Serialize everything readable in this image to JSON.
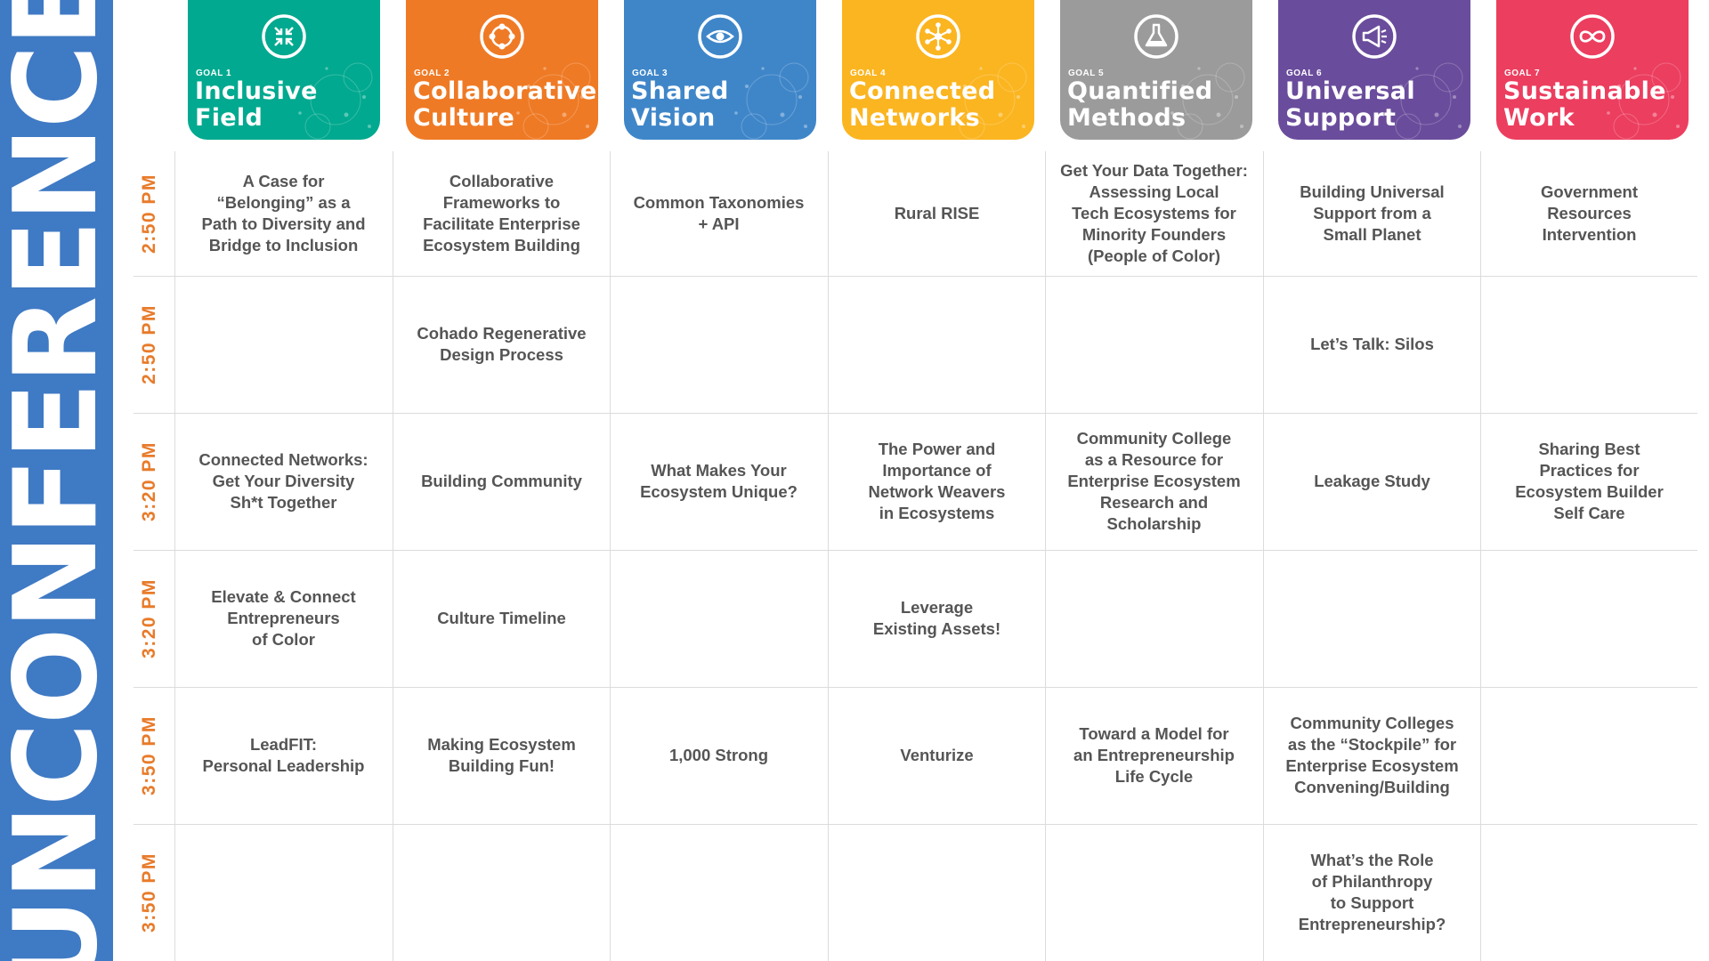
{
  "sidebar": {
    "title": "UNCONFERENCE"
  },
  "goals": [
    {
      "num": "GOAL 1",
      "title": "Inclusive\nField",
      "color": "#00a98f",
      "icon": "arrows-inward-icon"
    },
    {
      "num": "GOAL 2",
      "title": "Collaborative\nCulture",
      "color": "#ef7a25",
      "icon": "circle-nodes-icon"
    },
    {
      "num": "GOAL 3",
      "title": "Shared\nVision",
      "color": "#3f86c9",
      "icon": "eye-icon"
    },
    {
      "num": "GOAL 4",
      "title": "Connected\nNetworks",
      "color": "#fbb520",
      "icon": "network-icon"
    },
    {
      "num": "GOAL 5",
      "title": "Quantified\nMethods",
      "color": "#9b9b9b",
      "icon": "flask-icon"
    },
    {
      "num": "GOAL 6",
      "title": "Universal\nSupport",
      "color": "#6a4c9c",
      "icon": "megaphone-icon"
    },
    {
      "num": "GOAL 7",
      "title": "Sustainable\nWork",
      "color": "#ec3e5f",
      "icon": "infinity-icon"
    }
  ],
  "rows": [
    {
      "time": "2:50 PM",
      "sessions": [
        "A Case for\n“Belonging” as a\nPath to Diversity and\nBridge to Inclusion",
        "Collaborative\nFrameworks to\nFacilitate Enterprise\nEcosystem Building",
        "Common Taxonomies\n+ API",
        "Rural RISE",
        "Get Your Data Together:\nAssessing Local\nTech Ecosystems for\nMinority Founders\n(People of Color)",
        "Building Universal\nSupport from a\nSmall Planet",
        "Government\nResources\nIntervention"
      ]
    },
    {
      "time": "2:50 PM",
      "sessions": [
        "",
        "Cohado Regenerative\nDesign Process",
        "",
        "",
        "",
        "Let’s Talk: Silos",
        ""
      ]
    },
    {
      "time": "3:20 PM",
      "sessions": [
        "Connected Networks:\nGet Your Diversity\nSh*t Together",
        "Building Community",
        "What Makes Your\nEcosystem Unique?",
        "The Power and\nImportance of\nNetwork Weavers\nin Ecosystems",
        "Community College\nas a Resource for\nEnterprise Ecosystem\nResearch and\nScholarship",
        "Leakage Study",
        "Sharing Best\nPractices for\nEcosystem Builder\nSelf Care"
      ]
    },
    {
      "time": "3:20 PM",
      "sessions": [
        "Elevate & Connect\nEntrepreneurs\nof Color",
        "Culture Timeline",
        "",
        "Leverage\nExisting Assets!",
        "",
        "",
        ""
      ]
    },
    {
      "time": "3:50 PM",
      "sessions": [
        "LeadFIT:\nPersonal Leadership",
        "Making Ecosystem\nBuilding Fun!",
        "1,000 Strong",
        "Venturize",
        "Toward a Model for\nan Entrepreneurship\nLife Cycle",
        "Community Colleges\nas the “Stockpile” for\nEnterprise Ecosystem\nConvening/Building",
        ""
      ]
    },
    {
      "time": "3:50 PM",
      "sessions": [
        "",
        "",
        "",
        "",
        "",
        "What’s the Role\nof Philanthropy\nto Support\nEntrepreneurship?",
        ""
      ]
    }
  ]
}
